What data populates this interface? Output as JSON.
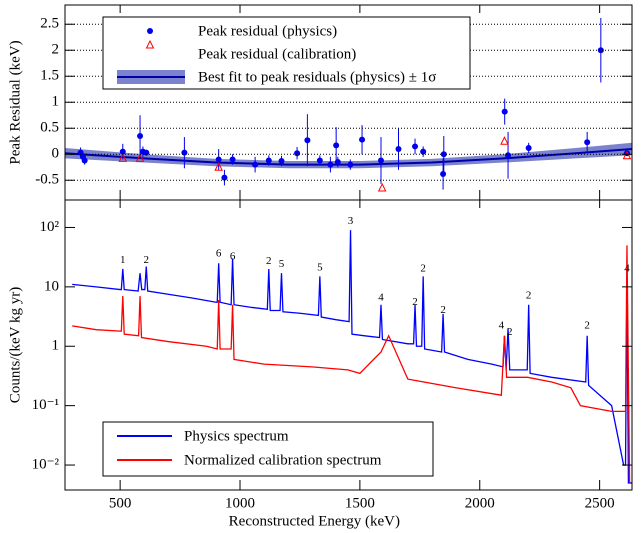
{
  "chart_data": [
    {
      "type": "scatter",
      "ylabel": "Peak Residual (keV)",
      "xlim": [
        270,
        2635
      ],
      "ylim": [
        -0.88,
        2.87
      ],
      "xticks": [
        500,
        1000,
        1500,
        2000,
        2500
      ],
      "yticks": [
        -0.5,
        0,
        0.5,
        1,
        1.5,
        2,
        2.5
      ],
      "grid": true,
      "series": [
        {
          "name": "Peak residual (physics)",
          "color": "#0000ee",
          "marker": "circle",
          "x": [
            335,
            345,
            352,
            511,
            583,
            595,
            609,
            768,
            911,
            935,
            969,
            1063,
            1120,
            1173,
            1238,
            1281,
            1333,
            1377,
            1401,
            1408,
            1460,
            1509,
            1588,
            1661,
            1730,
            1764,
            1847,
            1850,
            2104,
            2118,
            2204,
            2448,
            2505,
            2614
          ],
          "values": [
            0.03,
            -0.05,
            -0.12,
            0.05,
            0.35,
            0.05,
            0.03,
            0.03,
            -0.1,
            -0.45,
            -0.1,
            -0.2,
            -0.12,
            -0.13,
            0.02,
            0.27,
            -0.12,
            -0.2,
            0.17,
            -0.15,
            -0.2,
            0.28,
            -0.12,
            0.1,
            0.15,
            0.05,
            -0.38,
            0.0,
            0.82,
            -0.02,
            0.12,
            0.23,
            2.0,
            0.02
          ],
          "errors": [
            0.1,
            0.1,
            0.08,
            0.15,
            0.4,
            0.1,
            0.05,
            0.3,
            0.2,
            0.15,
            0.1,
            0.15,
            0.1,
            0.1,
            0.12,
            0.5,
            0.1,
            0.15,
            0.35,
            0.1,
            0.1,
            0.28,
            0.45,
            0.4,
            0.15,
            0.1,
            0.3,
            0.35,
            0.25,
            0.45,
            0.1,
            0.2,
            0.62,
            0.05
          ]
        },
        {
          "name": "Peak residual (calibration)",
          "color": "#ff0000",
          "marker": "triangle",
          "x": [
            511,
            583,
            911,
            1593,
            2103,
            2614
          ],
          "values": [
            -0.08,
            -0.08,
            -0.25,
            -0.65,
            0.25,
            -0.03
          ]
        }
      ],
      "fit": {
        "name": "Best fit to peak residuals (physics) ± 1σ",
        "color": "#0000aa",
        "band_color": "#7b83cc",
        "x": [
          270,
          600,
          900,
          1200,
          1500,
          1800,
          2100,
          2400,
          2635
        ],
        "values": [
          0.02,
          -0.08,
          -0.16,
          -0.2,
          -0.2,
          -0.16,
          -0.08,
          0.02,
          0.1
        ],
        "band": [
          0.1,
          0.08,
          0.07,
          0.07,
          0.07,
          0.07,
          0.08,
          0.1,
          0.12
        ]
      }
    },
    {
      "type": "line",
      "ylabel": "Counts/(keV kg yr)",
      "xlabel": "Reconstructed Energy (keV)",
      "xlim": [
        270,
        2635
      ],
      "ylim": [
        0.0038,
        290
      ],
      "log_scale": true,
      "xticks": [
        500,
        1000,
        1500,
        2000,
        2500
      ],
      "yticks": [
        {
          "value": 100,
          "label": "10²"
        },
        10,
        1,
        {
          "value": 0.1,
          "label": "10⁻¹"
        },
        {
          "value": 0.01,
          "label": "10⁻²"
        }
      ],
      "series": [
        {
          "name": "Physics spectrum",
          "color": "#0000ff",
          "x": [
            300,
            400,
            500,
            505,
            511,
            517,
            575,
            583,
            590,
            603,
            609,
            615,
            700,
            800,
            900,
            905,
            911,
            917,
            963,
            969,
            975,
            1050,
            1114,
            1120,
            1126,
            1167,
            1173,
            1179,
            1250,
            1327,
            1333,
            1339,
            1400,
            1455,
            1461,
            1467,
            1520,
            1582,
            1588,
            1594,
            1700,
            1724,
            1730,
            1736,
            1758,
            1764,
            1770,
            1841,
            1847,
            1853,
            1950,
            2050,
            2097,
            2103,
            2110,
            2118,
            2125,
            2198,
            2204,
            2210,
            2300,
            2442,
            2448,
            2454,
            2550,
            2600,
            2608,
            2614,
            2620,
            2635
          ],
          "values": [
            11,
            10,
            9,
            9,
            20,
            9,
            8.5,
            17,
            9,
            9,
            22,
            8.5,
            7.5,
            6.5,
            5.5,
            5.5,
            25,
            5.5,
            5,
            30,
            5,
            4.5,
            4.2,
            20,
            4,
            4,
            17,
            3.8,
            3.6,
            3.3,
            15,
            3.1,
            2.8,
            2.6,
            90,
            1.6,
            1.5,
            1.4,
            5,
            1.3,
            1.1,
            1.1,
            5,
            1.0,
            1.0,
            15,
            0.9,
            0.8,
            3.5,
            0.8,
            0.6,
            0.5,
            0.45,
            1.5,
            0.4,
            2,
            0.4,
            0.4,
            5,
            0.35,
            0.3,
            0.25,
            1.5,
            0.22,
            0.1,
            0.01,
            0.01,
            15,
            0.005,
            0.005
          ]
        },
        {
          "name": "Normalized calibration spectrum",
          "color": "#ff0000",
          "x": [
            300,
            400,
            500,
            505,
            511,
            517,
            577,
            583,
            589,
            700,
            860,
            905,
            911,
            917,
            963,
            969,
            975,
            1100,
            1300,
            1450,
            1500,
            1588,
            1620,
            1700,
            1900,
            2090,
            2103,
            2112,
            2200,
            2300,
            2380,
            2420,
            2550,
            2608,
            2614,
            2625
          ],
          "values": [
            2.2,
            1.9,
            1.8,
            1.8,
            7,
            1.6,
            1.5,
            7,
            1.4,
            1.2,
            1.0,
            0.9,
            6,
            0.9,
            0.9,
            5,
            0.6,
            0.5,
            0.45,
            0.4,
            0.35,
            0.8,
            1.5,
            0.28,
            0.2,
            0.15,
            1.5,
            0.3,
            0.3,
            0.25,
            0.2,
            0.1,
            0.08,
            0.08,
            50,
            0.005
          ]
        }
      ],
      "annotations": [
        {
          "text": "1",
          "x": 511,
          "y": 28
        },
        {
          "text": "2",
          "x": 609,
          "y": 28
        },
        {
          "text": "6",
          "x": 911,
          "y": 36
        },
        {
          "text": "6",
          "x": 969,
          "y": 32
        },
        {
          "text": "2",
          "x": 1120,
          "y": 27
        },
        {
          "text": "5",
          "x": 1173,
          "y": 24
        },
        {
          "text": "5",
          "x": 1333,
          "y": 21
        },
        {
          "text": "3",
          "x": 1461,
          "y": 125
        },
        {
          "text": "4",
          "x": 1588,
          "y": 6.5
        },
        {
          "text": "2",
          "x": 1730,
          "y": 5.5
        },
        {
          "text": "2",
          "x": 1764,
          "y": 20
        },
        {
          "text": "2",
          "x": 1847,
          "y": 4
        },
        {
          "text": "4",
          "x": 2090,
          "y": 2.2
        },
        {
          "text": "2",
          "x": 2125,
          "y": 1.7
        },
        {
          "text": "2",
          "x": 2204,
          "y": 7
        },
        {
          "text": "2",
          "x": 2448,
          "y": 2.2
        },
        {
          "text": "4",
          "x": 2614,
          "y": 20
        }
      ]
    }
  ]
}
